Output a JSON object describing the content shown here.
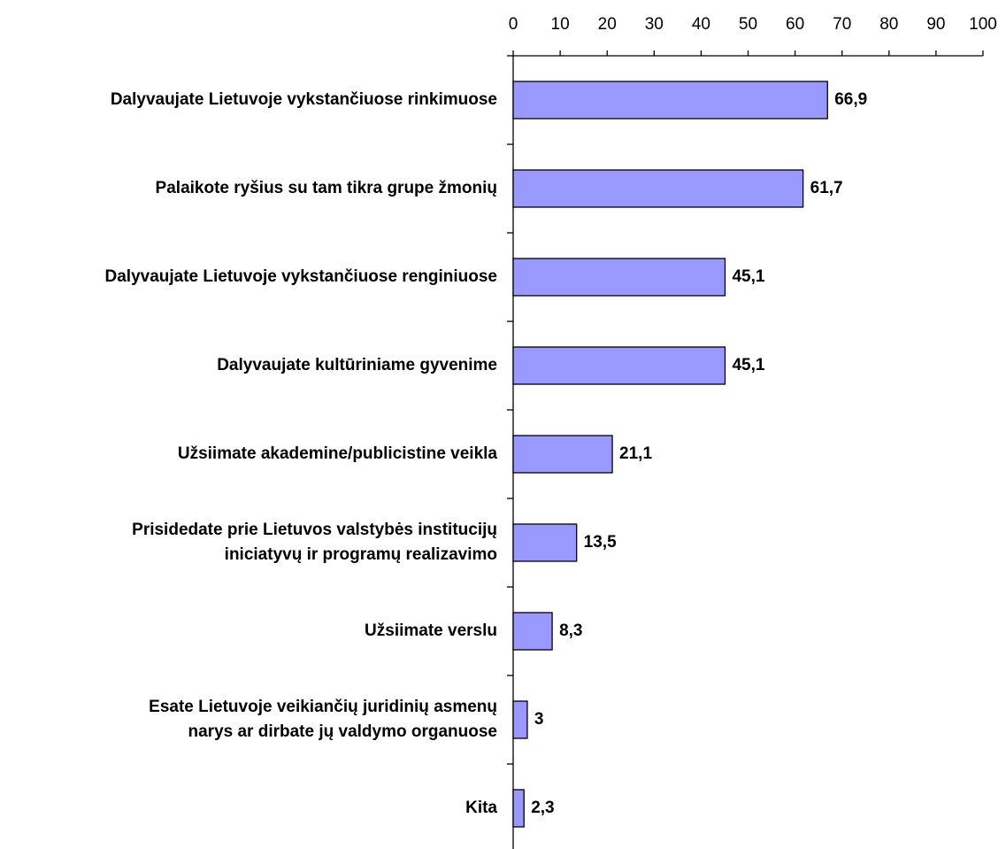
{
  "chart_data": {
    "type": "bar",
    "orientation": "horizontal",
    "categories": [
      "Dalyvaujate Lietuvoje vykstančiuose rinkimuose",
      "Palaikote ryšius su tam tikra grupe žmonių",
      "Dalyvaujate Lietuvoje vykstančiuose renginiuose",
      "Dalyvaujate kultūriniame gyvenime",
      "Užsiimate akademine/publicistine veikla",
      "Prisidedate prie Lietuvos valstybės institucijų\niniciatyvų ir programų realizavimo",
      "Užsiimate verslu",
      "Esate Lietuvoje veikiančių juridinių asmenų\nnarys ar dirbate jų valdymo organuose",
      "Kita"
    ],
    "values": [
      66.9,
      61.7,
      45.1,
      45.1,
      21.1,
      13.5,
      8.3,
      3,
      2.3
    ],
    "value_labels": [
      "66,9",
      "61,7",
      "45,1",
      "45,1",
      "21,1",
      "13,5",
      "8,3",
      "3",
      "2,3"
    ],
    "color": "#9999ff",
    "xlim": [
      0,
      100
    ],
    "xticks": [
      0,
      10,
      20,
      30,
      40,
      50,
      60,
      70,
      80,
      90,
      100
    ]
  }
}
